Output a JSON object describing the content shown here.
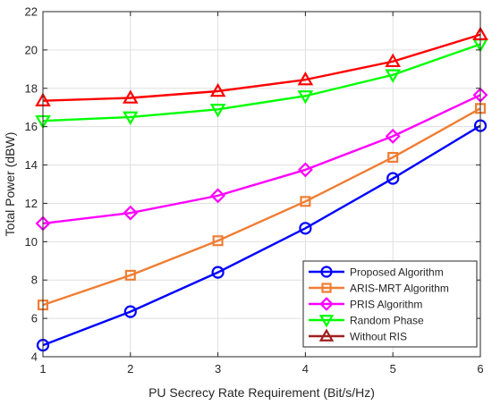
{
  "chart_data": {
    "type": "line",
    "title": "",
    "xlabel": "PU Secrecy Rate Requirement (Bit/s/Hz)",
    "ylabel": "Total Power (dBW)",
    "x": [
      1,
      2,
      3,
      4,
      5,
      6
    ],
    "xlim": [
      1,
      6
    ],
    "ylim": [
      4,
      22
    ],
    "xticks": [
      "1",
      "2",
      "3",
      "4",
      "5",
      "6"
    ],
    "yticks": [
      "4",
      "6",
      "8",
      "10",
      "12",
      "14",
      "16",
      "18",
      "20",
      "22"
    ],
    "grid": true,
    "legend_position": "bottom-right",
    "series": [
      {
        "name": "Proposed Algorithm",
        "color": "#0000ff",
        "marker": "circle",
        "values": [
          4.6,
          6.35,
          8.4,
          10.7,
          13.3,
          16.05
        ]
      },
      {
        "name": "ARIS-MRT Algorithm",
        "color": "#f07d32",
        "marker": "square",
        "values": [
          6.7,
          8.25,
          10.05,
          12.1,
          14.4,
          16.95
        ]
      },
      {
        "name": "PRIS Algorithm",
        "color": "#ff00ff",
        "marker": "diamond",
        "values": [
          10.95,
          11.5,
          12.4,
          13.75,
          15.5,
          17.65
        ]
      },
      {
        "name": "Random Phase",
        "color": "#00ff00",
        "marker": "triangle-down",
        "values": [
          16.3,
          16.5,
          16.9,
          17.6,
          18.7,
          20.3
        ]
      },
      {
        "name": "Without RIS",
        "color": "#ff0000",
        "legend_color": "#a02020",
        "marker": "triangle-up",
        "values": [
          17.35,
          17.5,
          17.85,
          18.45,
          19.4,
          20.8
        ]
      }
    ]
  }
}
